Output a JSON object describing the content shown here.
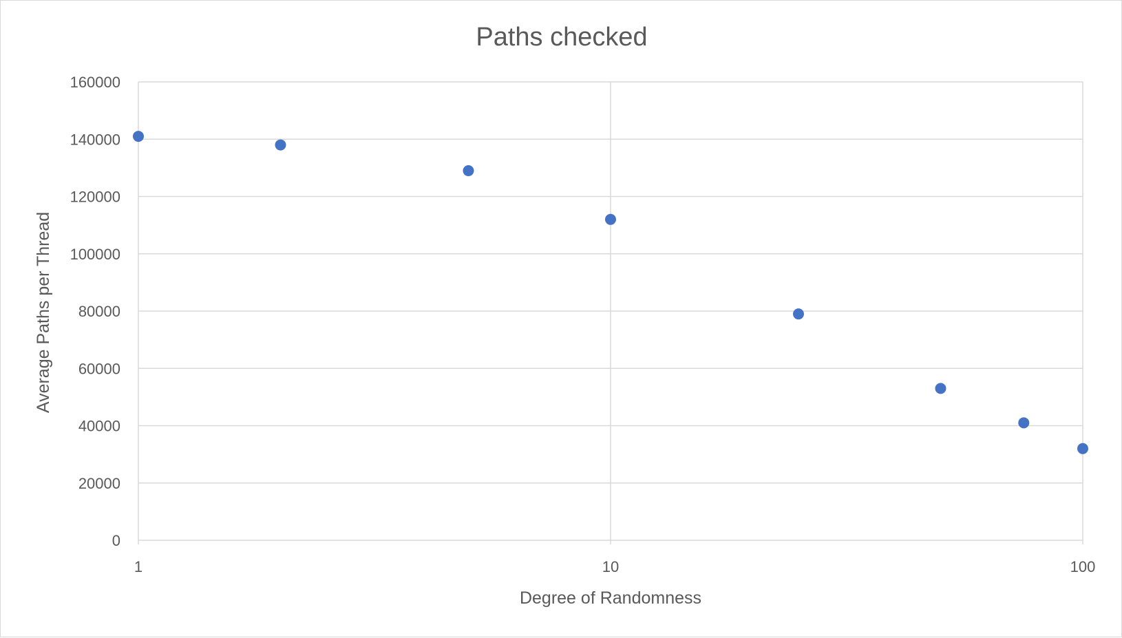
{
  "chart_data": {
    "type": "scatter",
    "title": "Paths checked",
    "xlabel": "Degree of Randomness",
    "ylabel": "Average Paths per Thread",
    "x_scale": "log",
    "xlim": [
      1,
      100
    ],
    "ylim": [
      0,
      160000
    ],
    "x_ticks": [
      1,
      10,
      100
    ],
    "y_ticks": [
      0,
      20000,
      40000,
      60000,
      80000,
      100000,
      120000,
      140000,
      160000
    ],
    "grid": true,
    "legend": "none",
    "colors": {
      "marker": "#4472c4",
      "grid": "#d9d9d9",
      "text": "#595959"
    },
    "series": [
      {
        "points": [
          {
            "x": 1,
            "y": 141000
          },
          {
            "x": 2,
            "y": 138000
          },
          {
            "x": 5,
            "y": 129000
          },
          {
            "x": 10,
            "y": 112000
          },
          {
            "x": 25,
            "y": 79000
          },
          {
            "x": 50,
            "y": 53000
          },
          {
            "x": 75,
            "y": 41000
          },
          {
            "x": 100,
            "y": 32000
          }
        ]
      }
    ]
  }
}
